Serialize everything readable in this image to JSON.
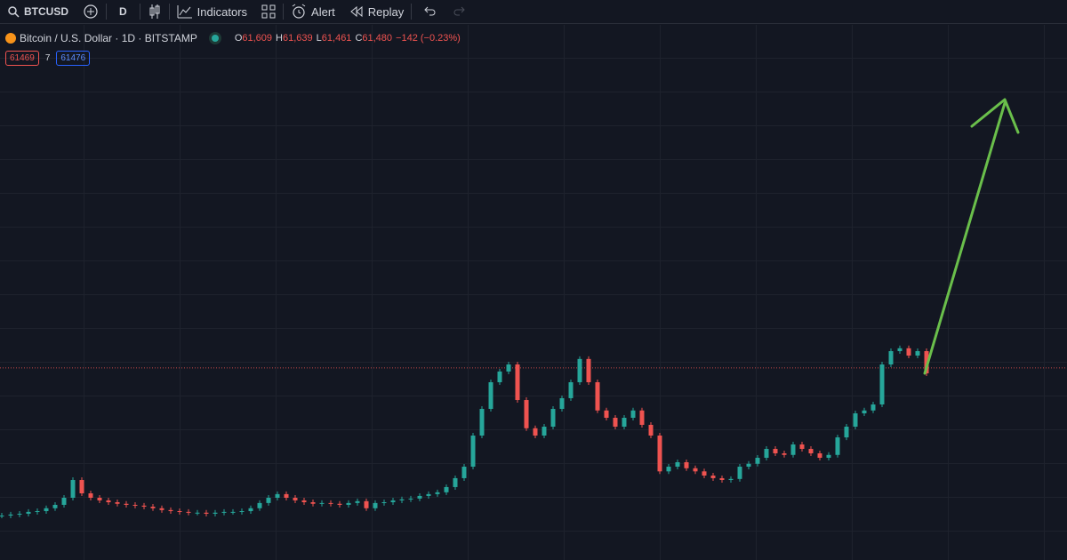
{
  "toolbar": {
    "symbol": "BTCUSD",
    "interval": "D",
    "indicators": "Indicators",
    "alert": "Alert",
    "replay": "Replay"
  },
  "legend": {
    "title": "Bitcoin / U.S. Dollar · 1D · BITSTAMP",
    "o_label": "O",
    "o": "61,609",
    "h_label": "H",
    "h": "61,639",
    "l_label": "L",
    "l": "61,461",
    "c_label": "C",
    "c": "61,480",
    "change": "−142 (−0.23%)"
  },
  "badges": {
    "sell": "61469",
    "spread": "7",
    "buy": "61476"
  },
  "chart_data": {
    "type": "candlestick",
    "values": [
      5000,
      5400,
      5700,
      6400,
      6700,
      7800,
      9100,
      11800,
      18600,
      13500,
      11800,
      10800,
      10100,
      9500,
      9100,
      8800,
      8400,
      7800,
      7100,
      6700,
      6400,
      6100,
      6100,
      5700,
      6100,
      6400,
      6400,
      6700,
      7800,
      9800,
      11800,
      13200,
      11800,
      10800,
      10100,
      9500,
      9800,
      9500,
      9100,
      9800,
      10500,
      7800,
      9800,
      10100,
      10800,
      11200,
      11500,
      12500,
      13200,
      13900,
      15900,
      19300,
      23700,
      35600,
      45800,
      56000,
      60100,
      62800,
      49200,
      38400,
      35600,
      39000,
      45800,
      49900,
      56000,
      64900,
      56000,
      45200,
      42400,
      39000,
      42400,
      45200,
      39700,
      35600,
      21900,
      23700,
      25400,
      23100,
      21900,
      20300,
      19300,
      18600,
      19000,
      23700,
      24800,
      27100,
      30500,
      28800,
      28200,
      32200,
      30500,
      28800,
      27100,
      28200,
      34900,
      39000,
      44100,
      45200,
      47500,
      62800,
      67900,
      69000,
      66200,
      67900,
      59400
    ],
    "up_color": "#26a69a",
    "down_color": "#ef5350",
    "last_price": 61480,
    "ylim": [
      -12000,
      192700
    ]
  }
}
